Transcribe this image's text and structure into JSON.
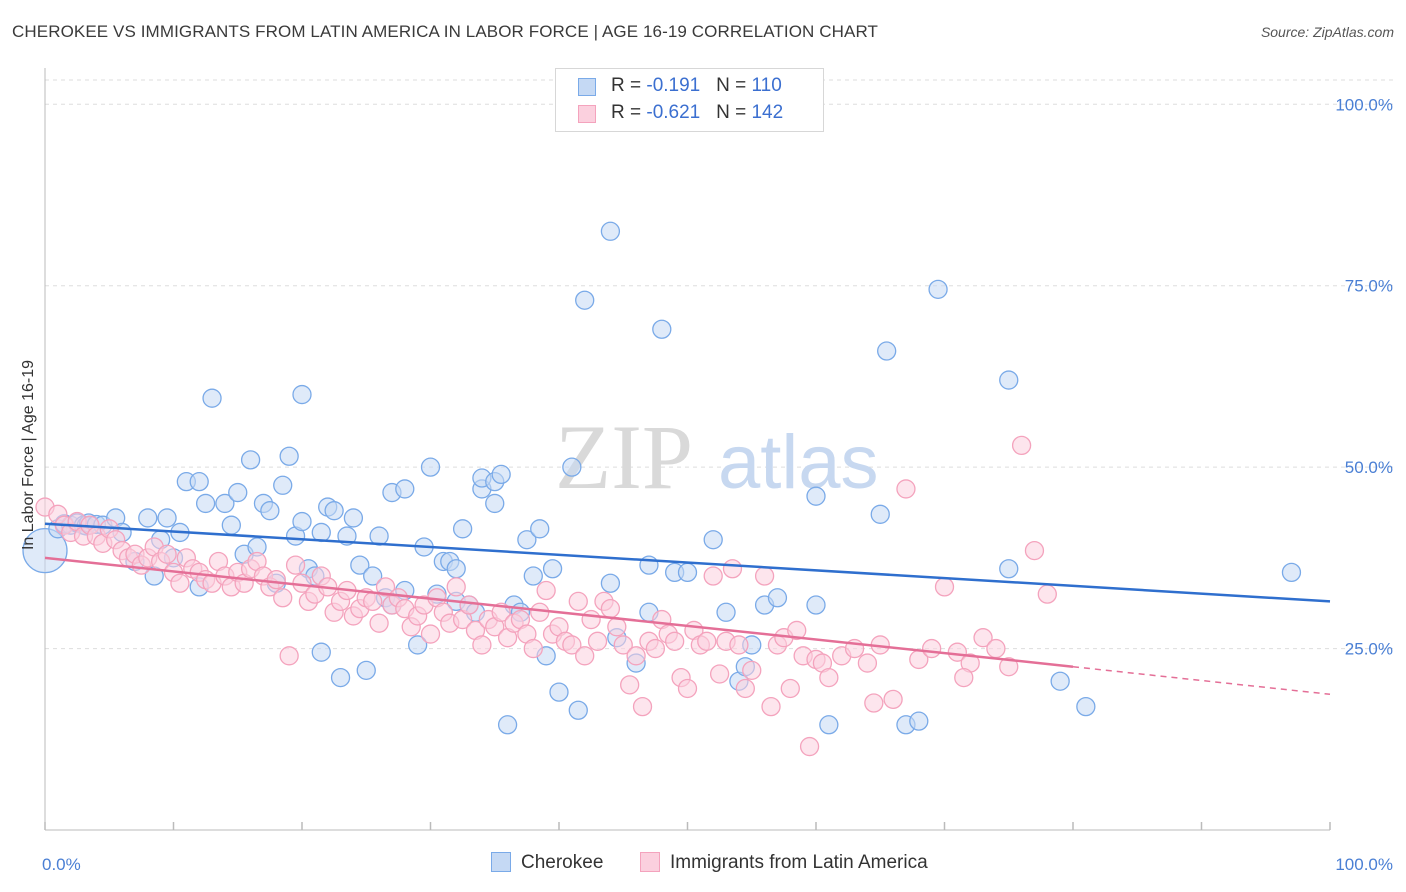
{
  "header": {
    "title": "CHEROKEE VS IMMIGRANTS FROM LATIN AMERICA IN LABOR FORCE | AGE 16-19 CORRELATION CHART",
    "source": "Source: ZipAtlas.com"
  },
  "watermark": {
    "zip": "ZIP",
    "atlas": "atlas"
  },
  "legend": {
    "rows": [
      {
        "r_label": "R = ",
        "r_value": "-0.191",
        "n_label": "N = ",
        "n_value": "110",
        "color": "#7aaae8"
      },
      {
        "r_label": "R = ",
        "r_value": "-0.621",
        "n_label": "N = ",
        "n_value": "142",
        "color": "#f4a3bd"
      }
    ]
  },
  "bottom_legend": {
    "series1": "Cherokee",
    "series2": "Immigrants from Latin America"
  },
  "chart_data": {
    "type": "scatter",
    "title": "CHEROKEE VS IMMIGRANTS FROM LATIN AMERICA IN LABOR FORCE | AGE 16-19 CORRELATION CHART",
    "ylabel": "In Labor Force | Age 16-19",
    "xlim": [
      0,
      100
    ],
    "ylim": [
      0,
      105
    ],
    "x_tick_labels": [
      "0.0%",
      "100.0%"
    ],
    "y_ticks": [
      25,
      50,
      75,
      100
    ],
    "y_tick_labels": [
      "25.0%",
      "50.0%",
      "75.0%",
      "100.0%"
    ],
    "grid": true,
    "legend_position": "top-center",
    "series": [
      {
        "name": "Cherokee",
        "color": "#7aaae8",
        "line_color": "#2f6fce",
        "r": -0.191,
        "n": 110,
        "trend": {
          "x_start": 0,
          "y_start": 42.2,
          "x_end": 100,
          "y_end": 31.5
        },
        "points": [
          [
            0,
            38.5
          ],
          [
            1,
            41.5
          ],
          [
            1.5,
            42.2
          ],
          [
            2,
            42.0
          ],
          [
            2.5,
            42.3
          ],
          [
            3,
            42.0
          ],
          [
            3.2,
            41.9
          ],
          [
            3.4,
            42.3
          ],
          [
            4,
            42.1
          ],
          [
            4.5,
            42.0
          ],
          [
            5.5,
            43.0
          ],
          [
            6,
            41.0
          ],
          [
            7,
            37.0
          ],
          [
            8,
            43.0
          ],
          [
            8.5,
            35.0
          ],
          [
            9,
            40.0
          ],
          [
            9.5,
            43.0
          ],
          [
            10,
            37.5
          ],
          [
            10.5,
            41.0
          ],
          [
            11,
            48.0
          ],
          [
            12,
            48.0
          ],
          [
            12,
            33.5
          ],
          [
            12.5,
            45.0
          ],
          [
            13,
            59.5
          ],
          [
            14,
            45.0
          ],
          [
            14.5,
            42.0
          ],
          [
            15,
            46.5
          ],
          [
            15.5,
            38.0
          ],
          [
            16,
            51.0
          ],
          [
            16.5,
            39.0
          ],
          [
            17,
            45.0
          ],
          [
            17.5,
            44.0
          ],
          [
            18,
            34.0
          ],
          [
            18.5,
            47.5
          ],
          [
            19,
            51.5
          ],
          [
            19.5,
            40.5
          ],
          [
            20,
            42.5
          ],
          [
            20,
            60.0
          ],
          [
            20.5,
            36.0
          ],
          [
            21,
            35.0
          ],
          [
            21.5,
            24.5
          ],
          [
            21.5,
            41.0
          ],
          [
            22,
            44.5
          ],
          [
            22.5,
            44.0
          ],
          [
            23,
            21.0
          ],
          [
            23.5,
            40.5
          ],
          [
            24,
            43.0
          ],
          [
            24.5,
            36.5
          ],
          [
            25,
            22.0
          ],
          [
            25.5,
            35.0
          ],
          [
            26,
            40.5
          ],
          [
            26.5,
            32.0
          ],
          [
            27,
            31.0
          ],
          [
            27,
            46.5
          ],
          [
            28,
            47.0
          ],
          [
            28,
            33.0
          ],
          [
            29,
            25.5
          ],
          [
            29.5,
            39.0
          ],
          [
            30,
            50.0
          ],
          [
            30.5,
            32.5
          ],
          [
            31,
            37.0
          ],
          [
            31.5,
            37.0
          ],
          [
            32,
            36.0
          ],
          [
            32,
            31.5
          ],
          [
            32.5,
            41.5
          ],
          [
            33,
            31.0
          ],
          [
            33.5,
            30.0
          ],
          [
            34,
            47.0
          ],
          [
            34,
            48.5
          ],
          [
            35,
            45.0
          ],
          [
            35,
            48.0
          ],
          [
            35.5,
            49.0
          ],
          [
            36,
            14.5
          ],
          [
            36.5,
            31.0
          ],
          [
            37,
            30.0
          ],
          [
            37.5,
            40.0
          ],
          [
            38,
            35.0
          ],
          [
            38.5,
            41.5
          ],
          [
            39,
            24.0
          ],
          [
            39.5,
            36.0
          ],
          [
            40,
            19.0
          ],
          [
            41,
            50.0
          ],
          [
            41.5,
            16.5
          ],
          [
            42,
            73.0
          ],
          [
            44,
            82.5
          ],
          [
            44,
            34.0
          ],
          [
            44.5,
            26.5
          ],
          [
            46,
            23.0
          ],
          [
            47,
            36.5
          ],
          [
            47,
            30.0
          ],
          [
            48,
            69.0
          ],
          [
            49,
            35.5
          ],
          [
            50,
            35.5
          ],
          [
            52,
            40.0
          ],
          [
            53,
            30.0
          ],
          [
            54,
            20.5
          ],
          [
            54.5,
            22.5
          ],
          [
            55,
            25.5
          ],
          [
            56,
            31.0
          ],
          [
            57,
            32.0
          ],
          [
            60,
            31.0
          ],
          [
            60,
            46.0
          ],
          [
            61,
            14.5
          ],
          [
            65,
            43.5
          ],
          [
            65.5,
            66.0
          ],
          [
            67,
            14.5
          ],
          [
            68,
            15.0
          ],
          [
            69.5,
            74.5
          ],
          [
            75,
            62.0
          ],
          [
            75,
            36.0
          ],
          [
            79,
            20.5
          ],
          [
            81,
            17.0
          ],
          [
            97,
            35.5
          ]
        ]
      },
      {
        "name": "Immigrants from Latin America",
        "color": "#f4a3bd",
        "line_color": "#e46f97",
        "r": -0.621,
        "n": 142,
        "trend": {
          "x_start": 0,
          "y_start": 37.5,
          "x_end": 80,
          "y_end": 22.5,
          "dashed_to_x": 100,
          "dashed_to_y": 18.7
        },
        "points": [
          [
            0,
            44.5
          ],
          [
            1,
            43.5
          ],
          [
            1.5,
            42.0
          ],
          [
            2,
            41.0
          ],
          [
            2.5,
            42.5
          ],
          [
            3,
            40.5
          ],
          [
            3.5,
            42.0
          ],
          [
            4,
            40.5
          ],
          [
            4.5,
            39.5
          ],
          [
            5,
            41.5
          ],
          [
            5.5,
            40.0
          ],
          [
            6,
            38.5
          ],
          [
            6.5,
            37.5
          ],
          [
            7,
            38.0
          ],
          [
            7.5,
            36.5
          ],
          [
            8,
            37.5
          ],
          [
            8.5,
            39.0
          ],
          [
            9,
            37.0
          ],
          [
            9.5,
            38.0
          ],
          [
            10,
            35.5
          ],
          [
            10.5,
            34.0
          ],
          [
            11,
            37.5
          ],
          [
            11.5,
            36.0
          ],
          [
            12,
            35.5
          ],
          [
            12.5,
            34.5
          ],
          [
            13,
            34.0
          ],
          [
            13.5,
            37.0
          ],
          [
            14,
            35.0
          ],
          [
            14.5,
            33.5
          ],
          [
            15,
            35.5
          ],
          [
            15.5,
            34.0
          ],
          [
            16,
            36.0
          ],
          [
            16.5,
            37.0
          ],
          [
            17,
            35.0
          ],
          [
            17.5,
            33.5
          ],
          [
            18,
            34.5
          ],
          [
            18.5,
            32.0
          ],
          [
            19,
            24.0
          ],
          [
            19.5,
            36.5
          ],
          [
            20,
            34.0
          ],
          [
            20.5,
            31.5
          ],
          [
            21,
            32.5
          ],
          [
            21.5,
            35.0
          ],
          [
            22,
            33.5
          ],
          [
            22.5,
            30.0
          ],
          [
            23,
            31.5
          ],
          [
            23.5,
            33.0
          ],
          [
            24,
            29.5
          ],
          [
            24.5,
            30.5
          ],
          [
            25,
            32.0
          ],
          [
            25.5,
            31.5
          ],
          [
            26,
            28.5
          ],
          [
            26.5,
            33.5
          ],
          [
            27,
            31.0
          ],
          [
            27.5,
            32.0
          ],
          [
            28,
            30.5
          ],
          [
            28.5,
            28.0
          ],
          [
            29,
            29.5
          ],
          [
            29.5,
            31.0
          ],
          [
            30,
            27.0
          ],
          [
            30.5,
            32.0
          ],
          [
            31,
            30.0
          ],
          [
            31.5,
            28.5
          ],
          [
            32,
            33.5
          ],
          [
            32.5,
            29.0
          ],
          [
            33,
            31.0
          ],
          [
            33.5,
            27.5
          ],
          [
            34,
            25.5
          ],
          [
            34.5,
            29.0
          ],
          [
            35,
            28.0
          ],
          [
            35.5,
            30.0
          ],
          [
            36,
            26.5
          ],
          [
            36.5,
            28.5
          ],
          [
            37,
            29.0
          ],
          [
            37.5,
            27.0
          ],
          [
            38,
            25.0
          ],
          [
            38.5,
            30.0
          ],
          [
            39,
            33.0
          ],
          [
            39.5,
            27.0
          ],
          [
            40,
            28.0
          ],
          [
            40.5,
            26.0
          ],
          [
            41,
            25.5
          ],
          [
            41.5,
            31.5
          ],
          [
            42,
            24.0
          ],
          [
            42.5,
            29.0
          ],
          [
            43,
            26.0
          ],
          [
            43.5,
            31.5
          ],
          [
            44,
            30.5
          ],
          [
            44.5,
            28.0
          ],
          [
            45,
            25.5
          ],
          [
            45.5,
            20.0
          ],
          [
            46,
            24.0
          ],
          [
            46.5,
            17.0
          ],
          [
            47,
            26.0
          ],
          [
            47.5,
            25.0
          ],
          [
            48,
            29.0
          ],
          [
            48.5,
            27.0
          ],
          [
            49,
            26.0
          ],
          [
            49.5,
            21.0
          ],
          [
            50,
            19.5
          ],
          [
            50.5,
            27.5
          ],
          [
            51,
            25.5
          ],
          [
            51.5,
            26.0
          ],
          [
            52,
            35.0
          ],
          [
            52.5,
            21.5
          ],
          [
            53,
            26.0
          ],
          [
            53.5,
            36.0
          ],
          [
            54,
            25.5
          ],
          [
            54.5,
            19.5
          ],
          [
            55,
            22.0
          ],
          [
            56,
            35.0
          ],
          [
            56.5,
            17.0
          ],
          [
            57,
            25.5
          ],
          [
            57.5,
            26.5
          ],
          [
            58,
            19.5
          ],
          [
            58.5,
            27.5
          ],
          [
            59,
            24.0
          ],
          [
            59.5,
            11.5
          ],
          [
            60,
            23.5
          ],
          [
            60.5,
            23.0
          ],
          [
            61,
            21.0
          ],
          [
            62,
            24.0
          ],
          [
            63,
            25.0
          ],
          [
            64,
            23.0
          ],
          [
            64.5,
            17.5
          ],
          [
            65,
            25.5
          ],
          [
            66,
            18.0
          ],
          [
            67,
            47.0
          ],
          [
            68,
            23.5
          ],
          [
            69,
            25.0
          ],
          [
            70,
            33.5
          ],
          [
            71,
            24.5
          ],
          [
            72,
            23.0
          ],
          [
            73,
            26.5
          ],
          [
            74,
            25.0
          ],
          [
            75,
            22.5
          ],
          [
            76,
            53.0
          ],
          [
            77,
            38.5
          ],
          [
            78,
            32.5
          ],
          [
            71.5,
            21.0
          ]
        ]
      }
    ]
  }
}
